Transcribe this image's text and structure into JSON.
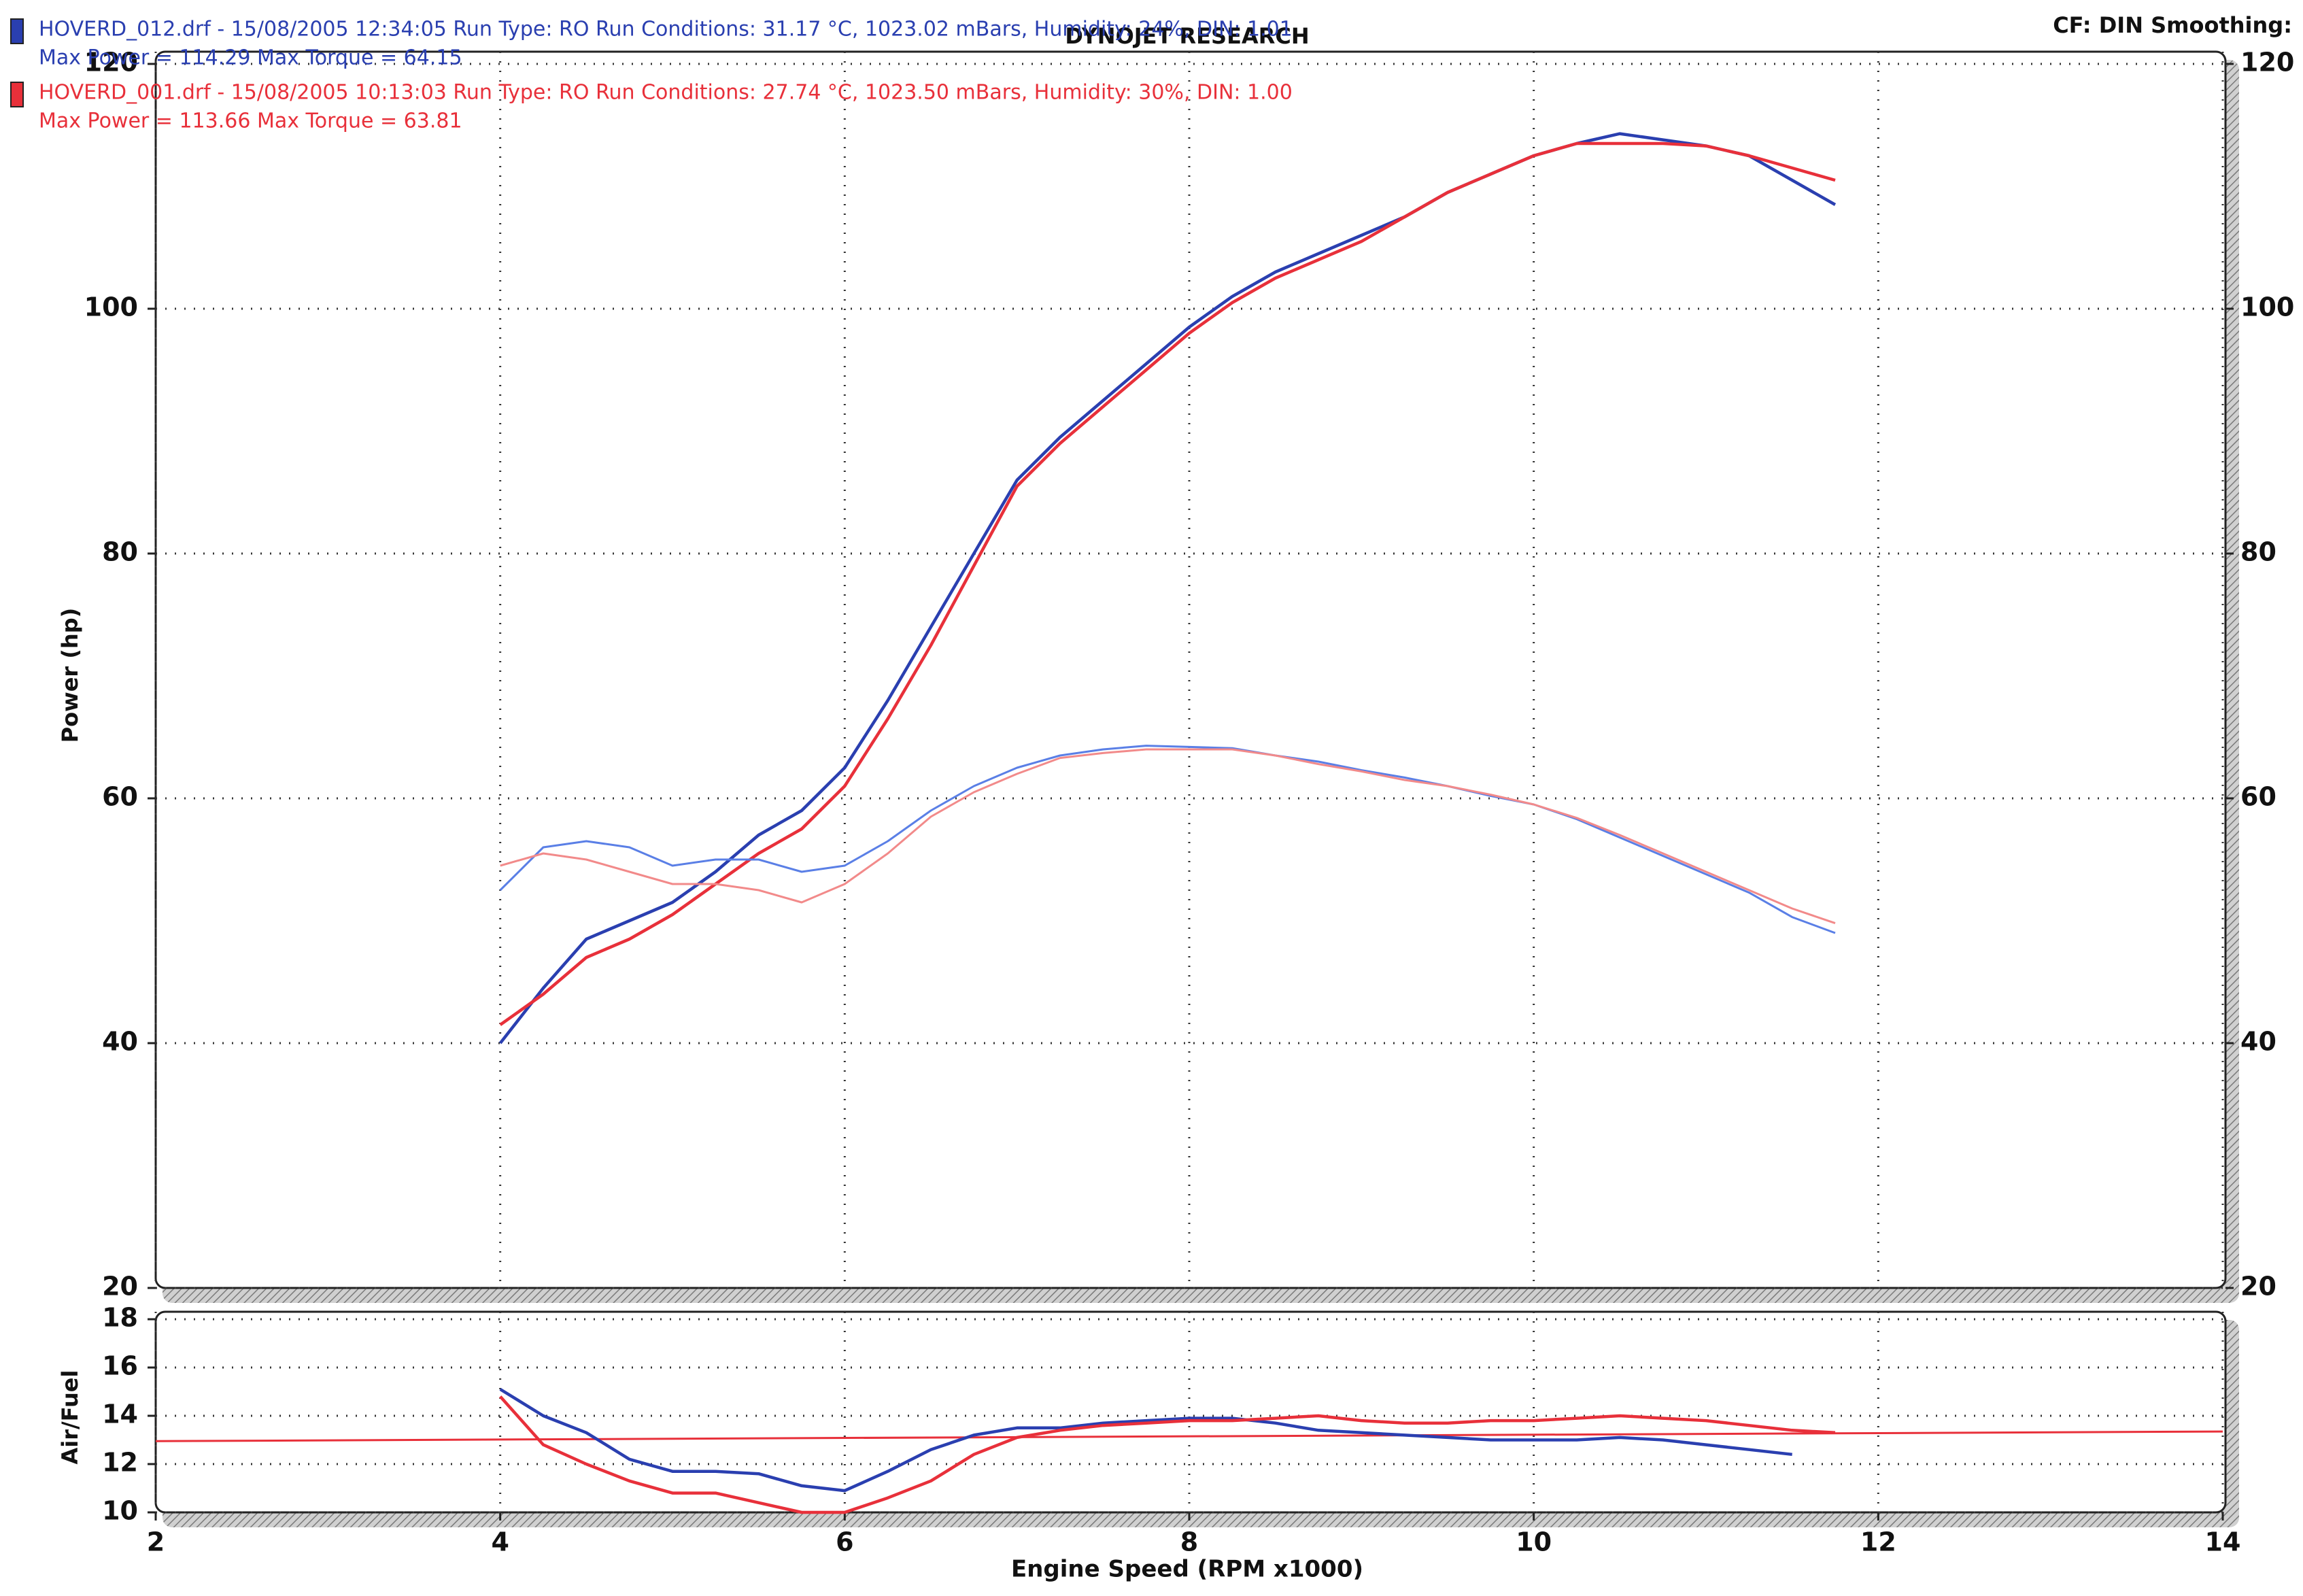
{
  "chart_data": [
    {
      "type": "line",
      "title": "DYNOJET RESEARCH",
      "note": "CF: DIN  Smoothing:",
      "ylabel": "Power (hp)",
      "x": [
        4,
        4.25,
        4.5,
        4.75,
        5,
        5.25,
        5.5,
        5.75,
        6,
        6.25,
        6.5,
        6.75,
        7,
        7.25,
        7.5,
        7.75,
        8,
        8.25,
        8.5,
        8.75,
        9,
        9.25,
        9.5,
        9.75,
        10,
        10.25,
        10.5,
        10.75,
        11,
        11.25,
        11.5,
        11.75
      ],
      "xlim": [
        2,
        14
      ],
      "xticks": [
        2,
        4,
        6,
        8,
        10,
        12,
        14
      ],
      "show_xtick_labels": false,
      "ylim": [
        20,
        120
      ],
      "yticks": [
        20,
        40,
        60,
        80,
        100,
        120
      ],
      "y2lim": [
        20,
        120
      ],
      "y2ticks": [
        20,
        40,
        60,
        80,
        100,
        120
      ],
      "grid": true,
      "series": [
        {
          "name": "HOVERD_012.drf - 15/08/2005 12:34:05  Run Type: RO  Run Conditions: 31.17 °C, 1023.02 mBars,  Humidity: 24%, DIN: 1.01",
          "summary": "Max Power = 114.29  Max Torque = 64.15",
          "color": "#2a3fb0",
          "values": [
            40,
            44.5,
            48.5,
            50,
            51.5,
            54,
            57,
            59,
            62.5,
            68,
            74,
            80,
            86,
            89.5,
            92.5,
            95.5,
            98.5,
            101,
            103,
            104.5,
            106,
            107.5,
            109.5,
            111,
            112.5,
            113.5,
            114.3,
            113.8,
            113.3,
            112.5,
            110.5,
            108.5
          ]
        },
        {
          "name": "HOVERD_001.drf - 15/08/2005 10:13:03  Run Type: RO  Run Conditions: 27.74 °C, 1023.50 mBars,  Humidity: 30%, DIN: 1.00",
          "summary": "Max Power = 113.66  Max Torque = 63.81",
          "color": "#e8303a",
          "values": [
            41.5,
            44,
            47,
            48.5,
            50.5,
            53,
            55.5,
            57.5,
            61,
            66.5,
            72.5,
            79,
            85.5,
            89,
            92,
            95,
            98,
            100.5,
            102.5,
            104,
            105.5,
            107.5,
            109.5,
            111,
            112.5,
            113.5,
            113.5,
            113.5,
            113.3,
            112.5,
            111.5,
            110.5
          ]
        },
        {
          "color": "#5a7fe6",
          "axis": "y2",
          "values": [
            52.5,
            56,
            56.5,
            56,
            54.5,
            55,
            55,
            54,
            54.5,
            56.5,
            59,
            61,
            62.5,
            63.5,
            64,
            64.3,
            64.2,
            64.1,
            63.5,
            63,
            62.3,
            61.7,
            61,
            60.2,
            59.5,
            58.3,
            56.8,
            55.3,
            53.8,
            52.3,
            50.3,
            49
          ]
        },
        {
          "color": "#f28a8a",
          "axis": "y2",
          "values": [
            54.5,
            55.5,
            55,
            54,
            53,
            53,
            52.5,
            51.5,
            53,
            55.5,
            58.5,
            60.5,
            62,
            63.3,
            63.7,
            64,
            64,
            64,
            63.5,
            62.8,
            62.2,
            61.5,
            61,
            60.3,
            59.5,
            58.4,
            57,
            55.5,
            54,
            52.5,
            51,
            49.8
          ]
        }
      ]
    },
    {
      "type": "line",
      "ylabel": "Air/Fuel",
      "xlabel": "Engine Speed (RPM x1000)",
      "x": [
        4,
        4.25,
        4.5,
        4.75,
        5,
        5.25,
        5.5,
        5.75,
        6,
        6.25,
        6.5,
        6.75,
        7,
        7.25,
        7.5,
        7.75,
        8,
        8.25,
        8.5,
        8.75,
        9,
        9.25,
        9.5,
        9.75,
        10,
        10.25,
        10.5,
        10.75,
        11,
        11.25,
        11.5,
        11.75
      ],
      "xlim": [
        2,
        14
      ],
      "xticks": [
        2,
        4,
        6,
        8,
        10,
        12,
        14
      ],
      "show_xtick_labels": true,
      "ylim": [
        10,
        18
      ],
      "yticks": [
        10,
        12,
        14,
        16,
        18
      ],
      "grid": true,
      "series": [
        {
          "color": "#2a3fb0",
          "values": [
            15.1,
            14,
            13.3,
            12.2,
            11.7,
            11.7,
            11.6,
            11.1,
            10.9,
            11.7,
            12.6,
            13.2,
            13.5,
            13.5,
            13.7,
            13.8,
            13.9,
            13.9,
            13.7,
            13.4,
            13.3,
            13.2,
            13.1,
            13,
            13,
            13,
            13.1,
            13,
            12.8,
            12.6,
            12.4,
            null
          ]
        },
        {
          "color": "#e8303a",
          "values": [
            14.8,
            12.8,
            12,
            11.3,
            10.8,
            10.8,
            10.4,
            10,
            10,
            10.6,
            11.3,
            12.4,
            13.1,
            13.4,
            13.6,
            13.7,
            13.8,
            13.8,
            13.9,
            14,
            13.8,
            13.7,
            13.7,
            13.8,
            13.8,
            13.9,
            14,
            13.9,
            13.8,
            13.6,
            13.4,
            13.3
          ]
        }
      ],
      "target_line": {
        "x": [
          2,
          14
        ],
        "values": [
          12.95,
          13.35
        ],
        "color": "#e8303a"
      }
    }
  ]
}
